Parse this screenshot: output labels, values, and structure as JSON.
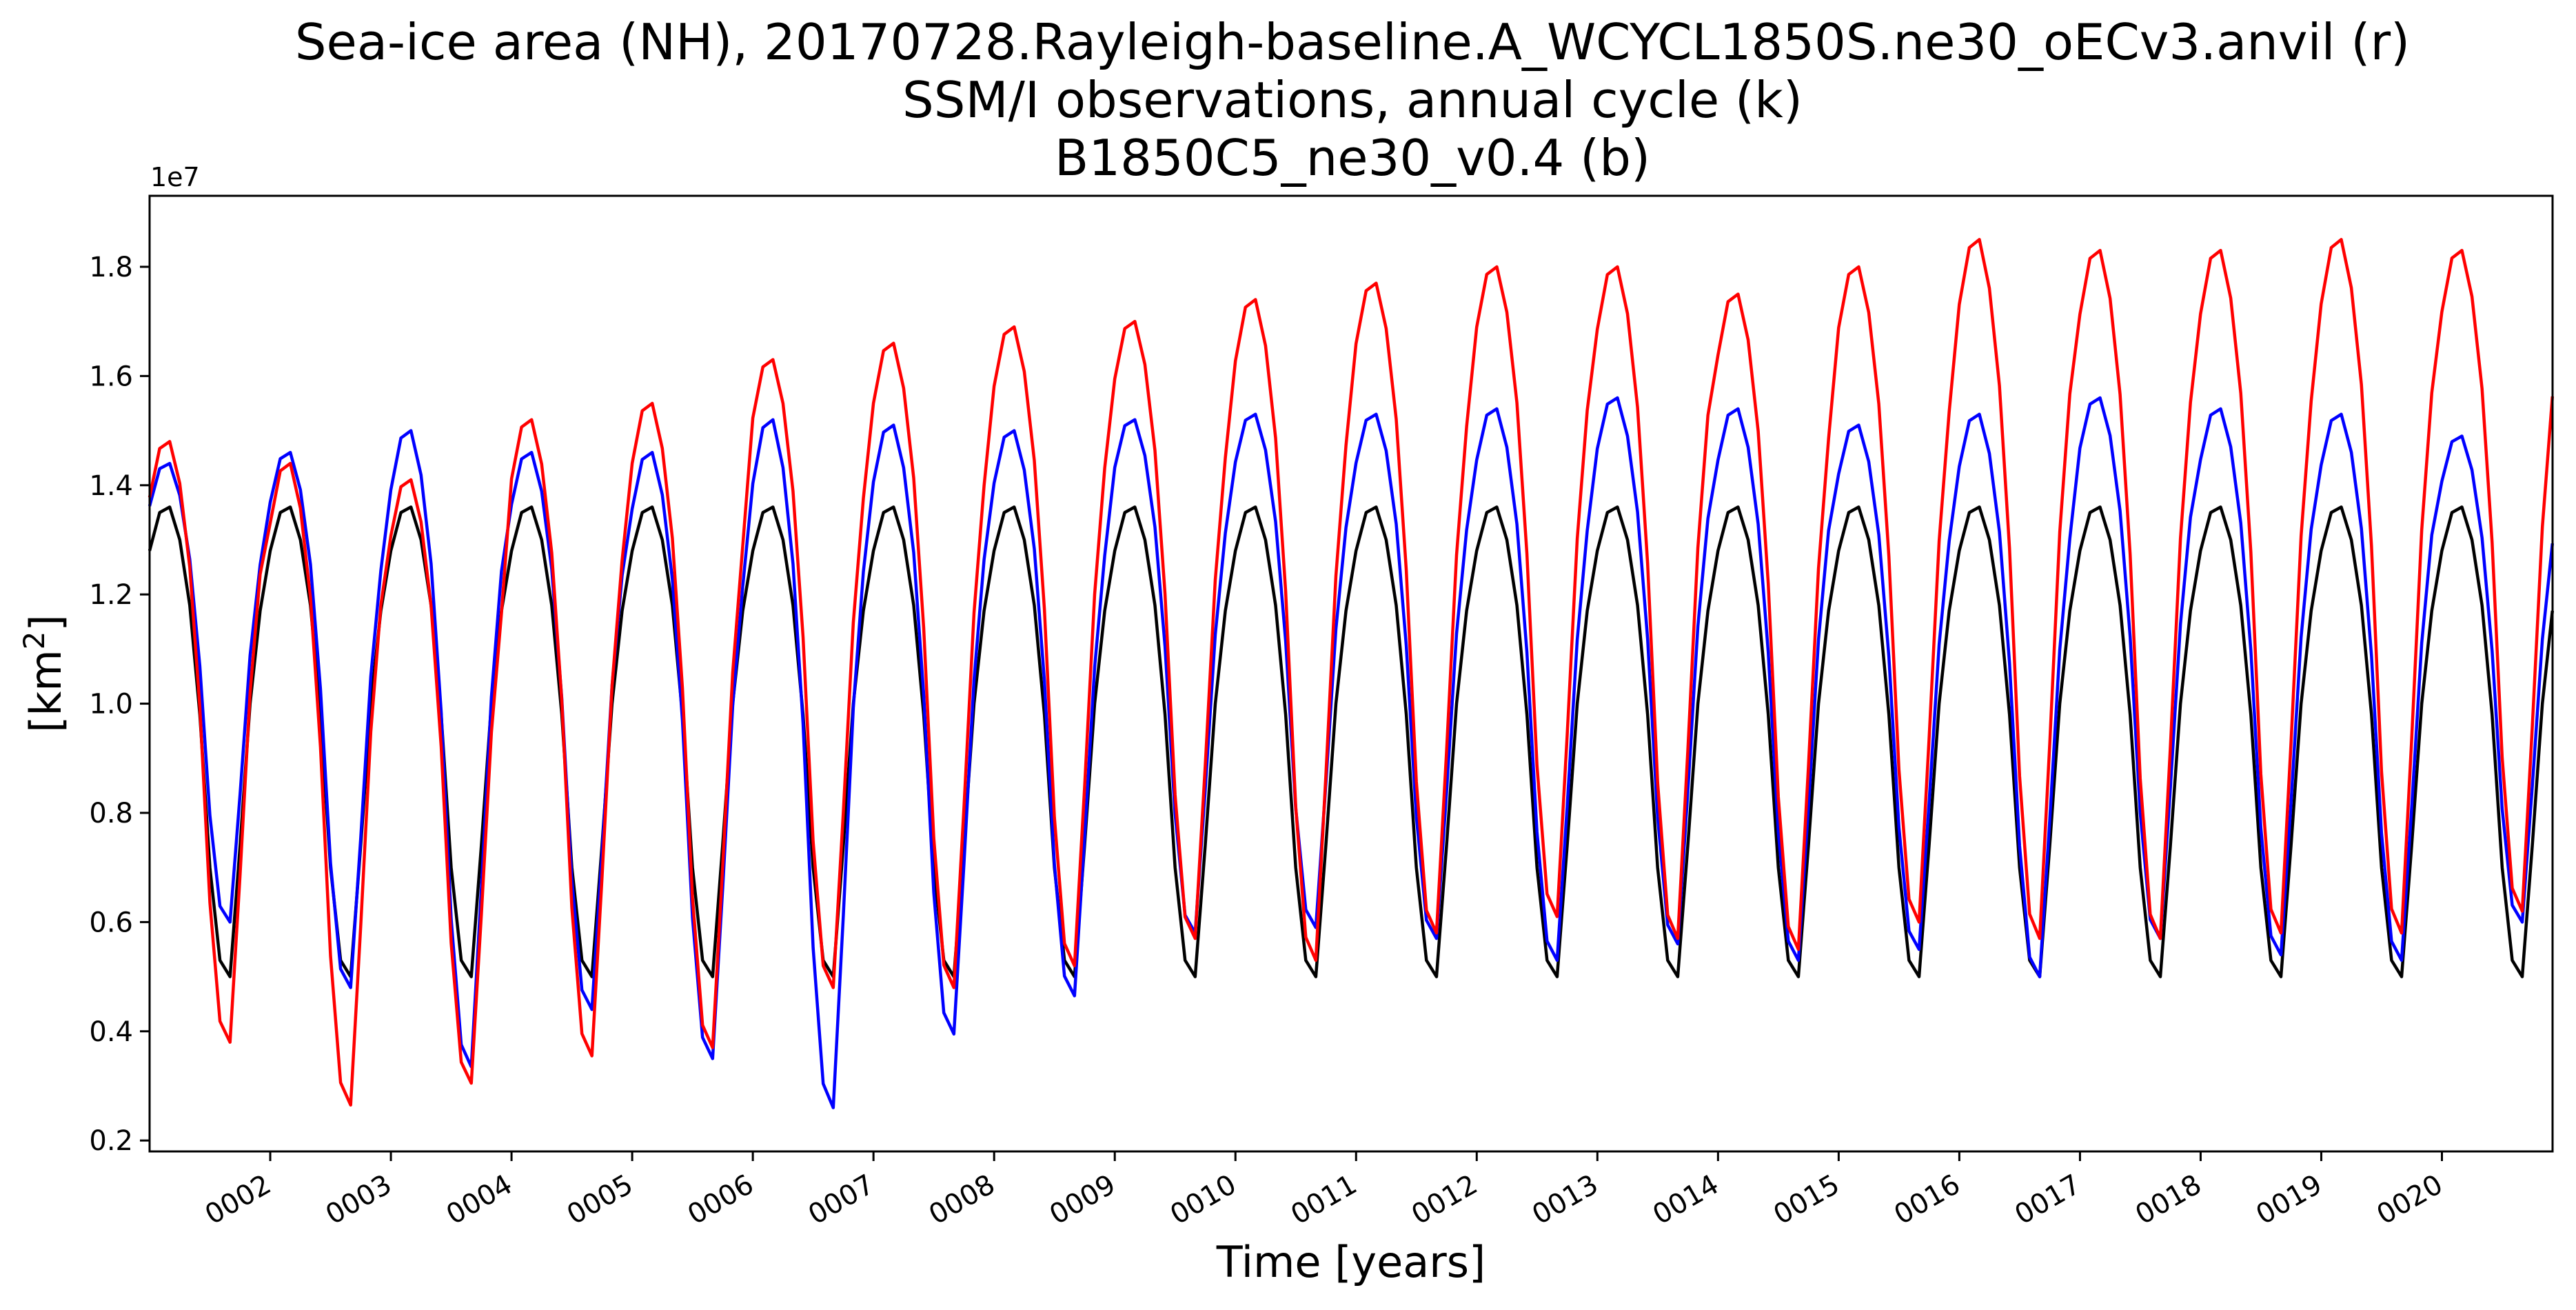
{
  "chart_data": {
    "type": "line",
    "title_lines": [
      "Sea-ice area (NH), 20170728.Rayleigh-baseline.A_WCYCL1850S.ne30_oECv3.anvil (r)",
      "SSM/I observations, annual cycle (k)",
      "B1850C5_ne30_v0.4 (b)"
    ],
    "xlabel": "Time [years]",
    "ylabel_main": "[km",
    "ylabel_sup": "2",
    "ylabel_end": "]",
    "y_offset_label": "1e7",
    "xlim": [
      1.0,
      20.917
    ],
    "ylim": [
      0.18,
      1.93
    ],
    "y_ticks": [
      {
        "value": 0.2,
        "label": "0.2"
      },
      {
        "value": 0.4,
        "label": "0.4"
      },
      {
        "value": 0.6,
        "label": "0.6"
      },
      {
        "value": 0.8,
        "label": "0.8"
      },
      {
        "value": 1.0,
        "label": "1.0"
      },
      {
        "value": 1.2,
        "label": "1.2"
      },
      {
        "value": 1.4,
        "label": "1.4"
      },
      {
        "value": 1.6,
        "label": "1.6"
      },
      {
        "value": 1.8,
        "label": "1.8"
      }
    ],
    "x_ticks": [
      {
        "value": 2,
        "label": "0002"
      },
      {
        "value": 3,
        "label": "0003"
      },
      {
        "value": 4,
        "label": "0004"
      },
      {
        "value": 5,
        "label": "0005"
      },
      {
        "value": 6,
        "label": "0006"
      },
      {
        "value": 7,
        "label": "0007"
      },
      {
        "value": 8,
        "label": "0008"
      },
      {
        "value": 9,
        "label": "0009"
      },
      {
        "value": 10,
        "label": "0010"
      },
      {
        "value": 11,
        "label": "0011"
      },
      {
        "value": 12,
        "label": "0012"
      },
      {
        "value": 13,
        "label": "0013"
      },
      {
        "value": 14,
        "label": "0014"
      },
      {
        "value": 15,
        "label": "0015"
      },
      {
        "value": 16,
        "label": "0016"
      },
      {
        "value": 17,
        "label": "0017"
      },
      {
        "value": 18,
        "label": "0018"
      },
      {
        "value": 19,
        "label": "0019"
      },
      {
        "value": 20,
        "label": "0020"
      }
    ],
    "x_start": 1.0,
    "x_step": 0.08333,
    "climatology_months": [
      1.28,
      1.35,
      1.36,
      1.3,
      1.18,
      0.98,
      0.7,
      0.53,
      0.5,
      0.74,
      1.0,
      1.17
    ],
    "series": [
      {
        "id": "run-r",
        "color": "#ff0000",
        "peaks": [
          1.48,
          1.44,
          1.41,
          1.52,
          1.55,
          1.63,
          1.66,
          1.69,
          1.7,
          1.74,
          1.77,
          1.8,
          1.8,
          1.75,
          1.8,
          1.85,
          1.83,
          1.83,
          1.85,
          1.83
        ],
        "minima": [
          0.38,
          0.265,
          0.305,
          0.355,
          0.37,
          0.48,
          0.48,
          0.52,
          0.57,
          0.53,
          0.58,
          0.61,
          0.57,
          0.55,
          0.6,
          0.57,
          0.57,
          0.58,
          0.58,
          0.62
        ]
      },
      {
        "id": "obs-k",
        "color": "#000000",
        "peaks": [
          1.36,
          1.36,
          1.36,
          1.36,
          1.36,
          1.36,
          1.36,
          1.36,
          1.36,
          1.36,
          1.36,
          1.36,
          1.36,
          1.36,
          1.36,
          1.36,
          1.36,
          1.36,
          1.36,
          1.36
        ],
        "minima": [
          0.5,
          0.5,
          0.5,
          0.5,
          0.5,
          0.5,
          0.5,
          0.5,
          0.5,
          0.5,
          0.5,
          0.5,
          0.5,
          0.5,
          0.5,
          0.5,
          0.5,
          0.5,
          0.5,
          0.5
        ]
      },
      {
        "id": "base-b",
        "color": "#0000ff",
        "peaks": [
          1.44,
          1.46,
          1.5,
          1.46,
          1.46,
          1.52,
          1.51,
          1.5,
          1.52,
          1.53,
          1.53,
          1.54,
          1.56,
          1.54,
          1.51,
          1.53,
          1.56,
          1.54,
          1.53,
          1.49
        ],
        "minima": [
          0.6,
          0.48,
          0.335,
          0.44,
          0.35,
          0.26,
          0.395,
          0.465,
          0.58,
          0.59,
          0.57,
          0.53,
          0.56,
          0.53,
          0.55,
          0.5,
          0.57,
          0.54,
          0.53,
          0.6
        ]
      }
    ]
  }
}
